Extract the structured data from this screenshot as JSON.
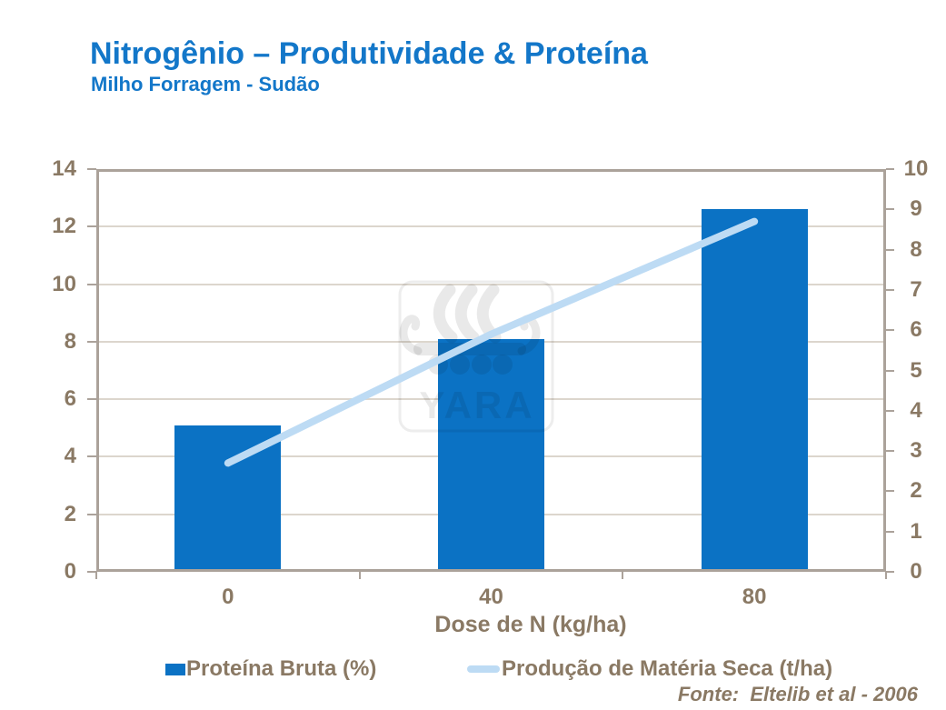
{
  "header": {
    "title": "Nitrogênio – Produtividade & Proteína",
    "subtitle": "Milho Forragem - Sudão"
  },
  "chart_data": {
    "type": "bar",
    "combo": "bar+line",
    "categories": [
      "0",
      "40",
      "80"
    ],
    "series": [
      {
        "name": "Proteína Bruta (%)",
        "type": "bar",
        "axis": "left",
        "values": [
          5.1,
          8.1,
          12.6
        ]
      },
      {
        "name": "Produção de Matéria Seca (t/ha)",
        "type": "line",
        "axis": "right",
        "values": [
          2.7,
          5.9,
          8.7
        ]
      }
    ],
    "xlabel": "Dose de N (kg/ha)",
    "left_axis": {
      "min": 0,
      "max": 14,
      "step": 2,
      "ticks": [
        "0",
        "2",
        "4",
        "6",
        "8",
        "10",
        "12",
        "14"
      ]
    },
    "right_axis": {
      "min": 0,
      "max": 10,
      "step": 1,
      "ticks": [
        "0",
        "1",
        "2",
        "3",
        "4",
        "5",
        "6",
        "7",
        "8",
        "9",
        "10"
      ]
    },
    "grid": true,
    "legend_position": "bottom"
  },
  "watermark": {
    "brand": "YARA"
  },
  "source_note": "Fonte:  Eltelib et al - 2006",
  "colors": {
    "bar_blue": "#0B72C4",
    "line_blue": "#BDDBF4",
    "title_blue": "#1377C9",
    "text_brown": "#8A7964",
    "border_taupe": "#ABA29A",
    "grid_col": "#DCD6CD"
  }
}
